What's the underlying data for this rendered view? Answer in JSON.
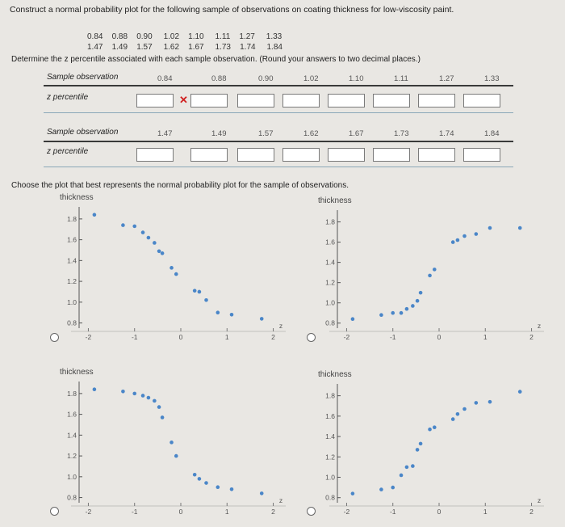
{
  "question": {
    "intro": "Construct a normal probability plot for the following sample of observations on coating thickness for low-viscosity paint.",
    "sample_line1": [
      "0.84",
      "0.88",
      "0.90",
      "1.02",
      "1.10",
      "1.11",
      "1.27",
      "1.33"
    ],
    "sample_line2": [
      "1.47",
      "1.49",
      "1.57",
      "1.62",
      "1.67",
      "1.73",
      "1.74",
      "1.84"
    ],
    "instruction": "Determine the z percentile associated with each sample observation. (Round your answers to two decimal places.)",
    "choose": "Choose the plot that best represents the normal probability plot for the sample of observations."
  },
  "table1": {
    "obs_label": "Sample observation",
    "z_label": "z percentile",
    "values": [
      "0.84",
      "0.88",
      "0.90",
      "1.02",
      "1.10",
      "1.11",
      "1.27",
      "1.33"
    ],
    "answers": [
      "",
      "",
      "",
      "",
      "",
      "",
      "",
      ""
    ],
    "mark": "✕"
  },
  "table2": {
    "obs_label": "Sample observation",
    "z_label": "z percentile",
    "values": [
      "1.47",
      "1.49",
      "1.57",
      "1.62",
      "1.67",
      "1.73",
      "1.74",
      "1.84"
    ],
    "answers": [
      "",
      "",
      "",
      "",
      "",
      "",
      "",
      ""
    ]
  },
  "colors": {
    "point": "#4a86c8",
    "mark": "#d02020"
  },
  "chart_data": [
    {
      "type": "scatter",
      "ylabel": "thickness",
      "xlabel": "z",
      "xlim": [
        -2.2,
        2.2
      ],
      "ylim": [
        0.75,
        1.9
      ],
      "yticks": [
        "1.8",
        "1.6",
        "1.4",
        "1.2",
        "1.0",
        "0.8"
      ],
      "xticks": [
        "-2",
        "-1",
        "0",
        "1",
        "2"
      ],
      "points": [
        [
          -1.87,
          1.84
        ],
        [
          -1.25,
          1.74
        ],
        [
          -1.0,
          1.73
        ],
        [
          -0.82,
          1.67
        ],
        [
          -0.7,
          1.62
        ],
        [
          -0.57,
          1.57
        ],
        [
          -0.47,
          1.49
        ],
        [
          -0.4,
          1.47
        ],
        [
          -0.2,
          1.33
        ],
        [
          -0.1,
          1.27
        ],
        [
          0.3,
          1.11
        ],
        [
          0.4,
          1.1
        ],
        [
          0.55,
          1.02
        ],
        [
          0.8,
          0.9
        ],
        [
          1.1,
          0.88
        ],
        [
          1.75,
          0.84
        ]
      ]
    },
    {
      "type": "scatter",
      "ylabel": "thickness",
      "xlabel": "z",
      "xlim": [
        -2.2,
        2.2
      ],
      "ylim": [
        0.75,
        1.9
      ],
      "yticks": [
        "1.8",
        "1.6",
        "1.4",
        "1.2",
        "1.0",
        "0.8"
      ],
      "xticks": [
        "-2",
        "-1",
        "0",
        "1",
        "2"
      ],
      "points": [
        [
          -1.87,
          0.84
        ],
        [
          -1.25,
          0.88
        ],
        [
          -1.0,
          0.9
        ],
        [
          -0.82,
          0.9
        ],
        [
          -0.7,
          0.94
        ],
        [
          -0.57,
          0.97
        ],
        [
          -0.47,
          1.02
        ],
        [
          -0.4,
          1.1
        ],
        [
          -0.2,
          1.27
        ],
        [
          -0.1,
          1.33
        ],
        [
          0.3,
          1.6
        ],
        [
          0.4,
          1.62
        ],
        [
          0.55,
          1.66
        ],
        [
          0.8,
          1.68
        ],
        [
          1.1,
          1.74
        ],
        [
          1.75,
          1.74
        ]
      ]
    },
    {
      "type": "scatter",
      "ylabel": "thickness",
      "xlabel": "z",
      "xlim": [
        -2.2,
        2.2
      ],
      "ylim": [
        0.75,
        1.9
      ],
      "yticks": [
        "1.8",
        "1.6",
        "1.4",
        "1.2",
        "1.0",
        "0.8"
      ],
      "xticks": [
        "-2",
        "-1",
        "0",
        "1",
        "2"
      ],
      "points": [
        [
          -1.87,
          1.84
        ],
        [
          -1.25,
          1.82
        ],
        [
          -1.0,
          1.8
        ],
        [
          -0.82,
          1.78
        ],
        [
          -0.7,
          1.76
        ],
        [
          -0.57,
          1.73
        ],
        [
          -0.47,
          1.67
        ],
        [
          -0.4,
          1.57
        ],
        [
          -0.2,
          1.33
        ],
        [
          -0.1,
          1.2
        ],
        [
          0.3,
          1.02
        ],
        [
          0.4,
          0.98
        ],
        [
          0.55,
          0.94
        ],
        [
          0.8,
          0.9
        ],
        [
          1.1,
          0.88
        ],
        [
          1.75,
          0.84
        ]
      ]
    },
    {
      "type": "scatter",
      "ylabel": "thickness",
      "xlabel": "z",
      "xlim": [
        -2.2,
        2.2
      ],
      "ylim": [
        0.75,
        1.9
      ],
      "yticks": [
        "1.8",
        "1.6",
        "1.4",
        "1.2",
        "1.0",
        "0.8"
      ],
      "xticks": [
        "-2",
        "-1",
        "0",
        "1",
        "2"
      ],
      "points": [
        [
          -1.87,
          0.84
        ],
        [
          -1.25,
          0.88
        ],
        [
          -1.0,
          0.9
        ],
        [
          -0.82,
          1.02
        ],
        [
          -0.7,
          1.1
        ],
        [
          -0.57,
          1.11
        ],
        [
          -0.47,
          1.27
        ],
        [
          -0.4,
          1.33
        ],
        [
          -0.2,
          1.47
        ],
        [
          -0.1,
          1.49
        ],
        [
          0.3,
          1.57
        ],
        [
          0.4,
          1.62
        ],
        [
          0.55,
          1.67
        ],
        [
          0.8,
          1.73
        ],
        [
          1.1,
          1.74
        ],
        [
          1.75,
          1.84
        ]
      ]
    }
  ]
}
